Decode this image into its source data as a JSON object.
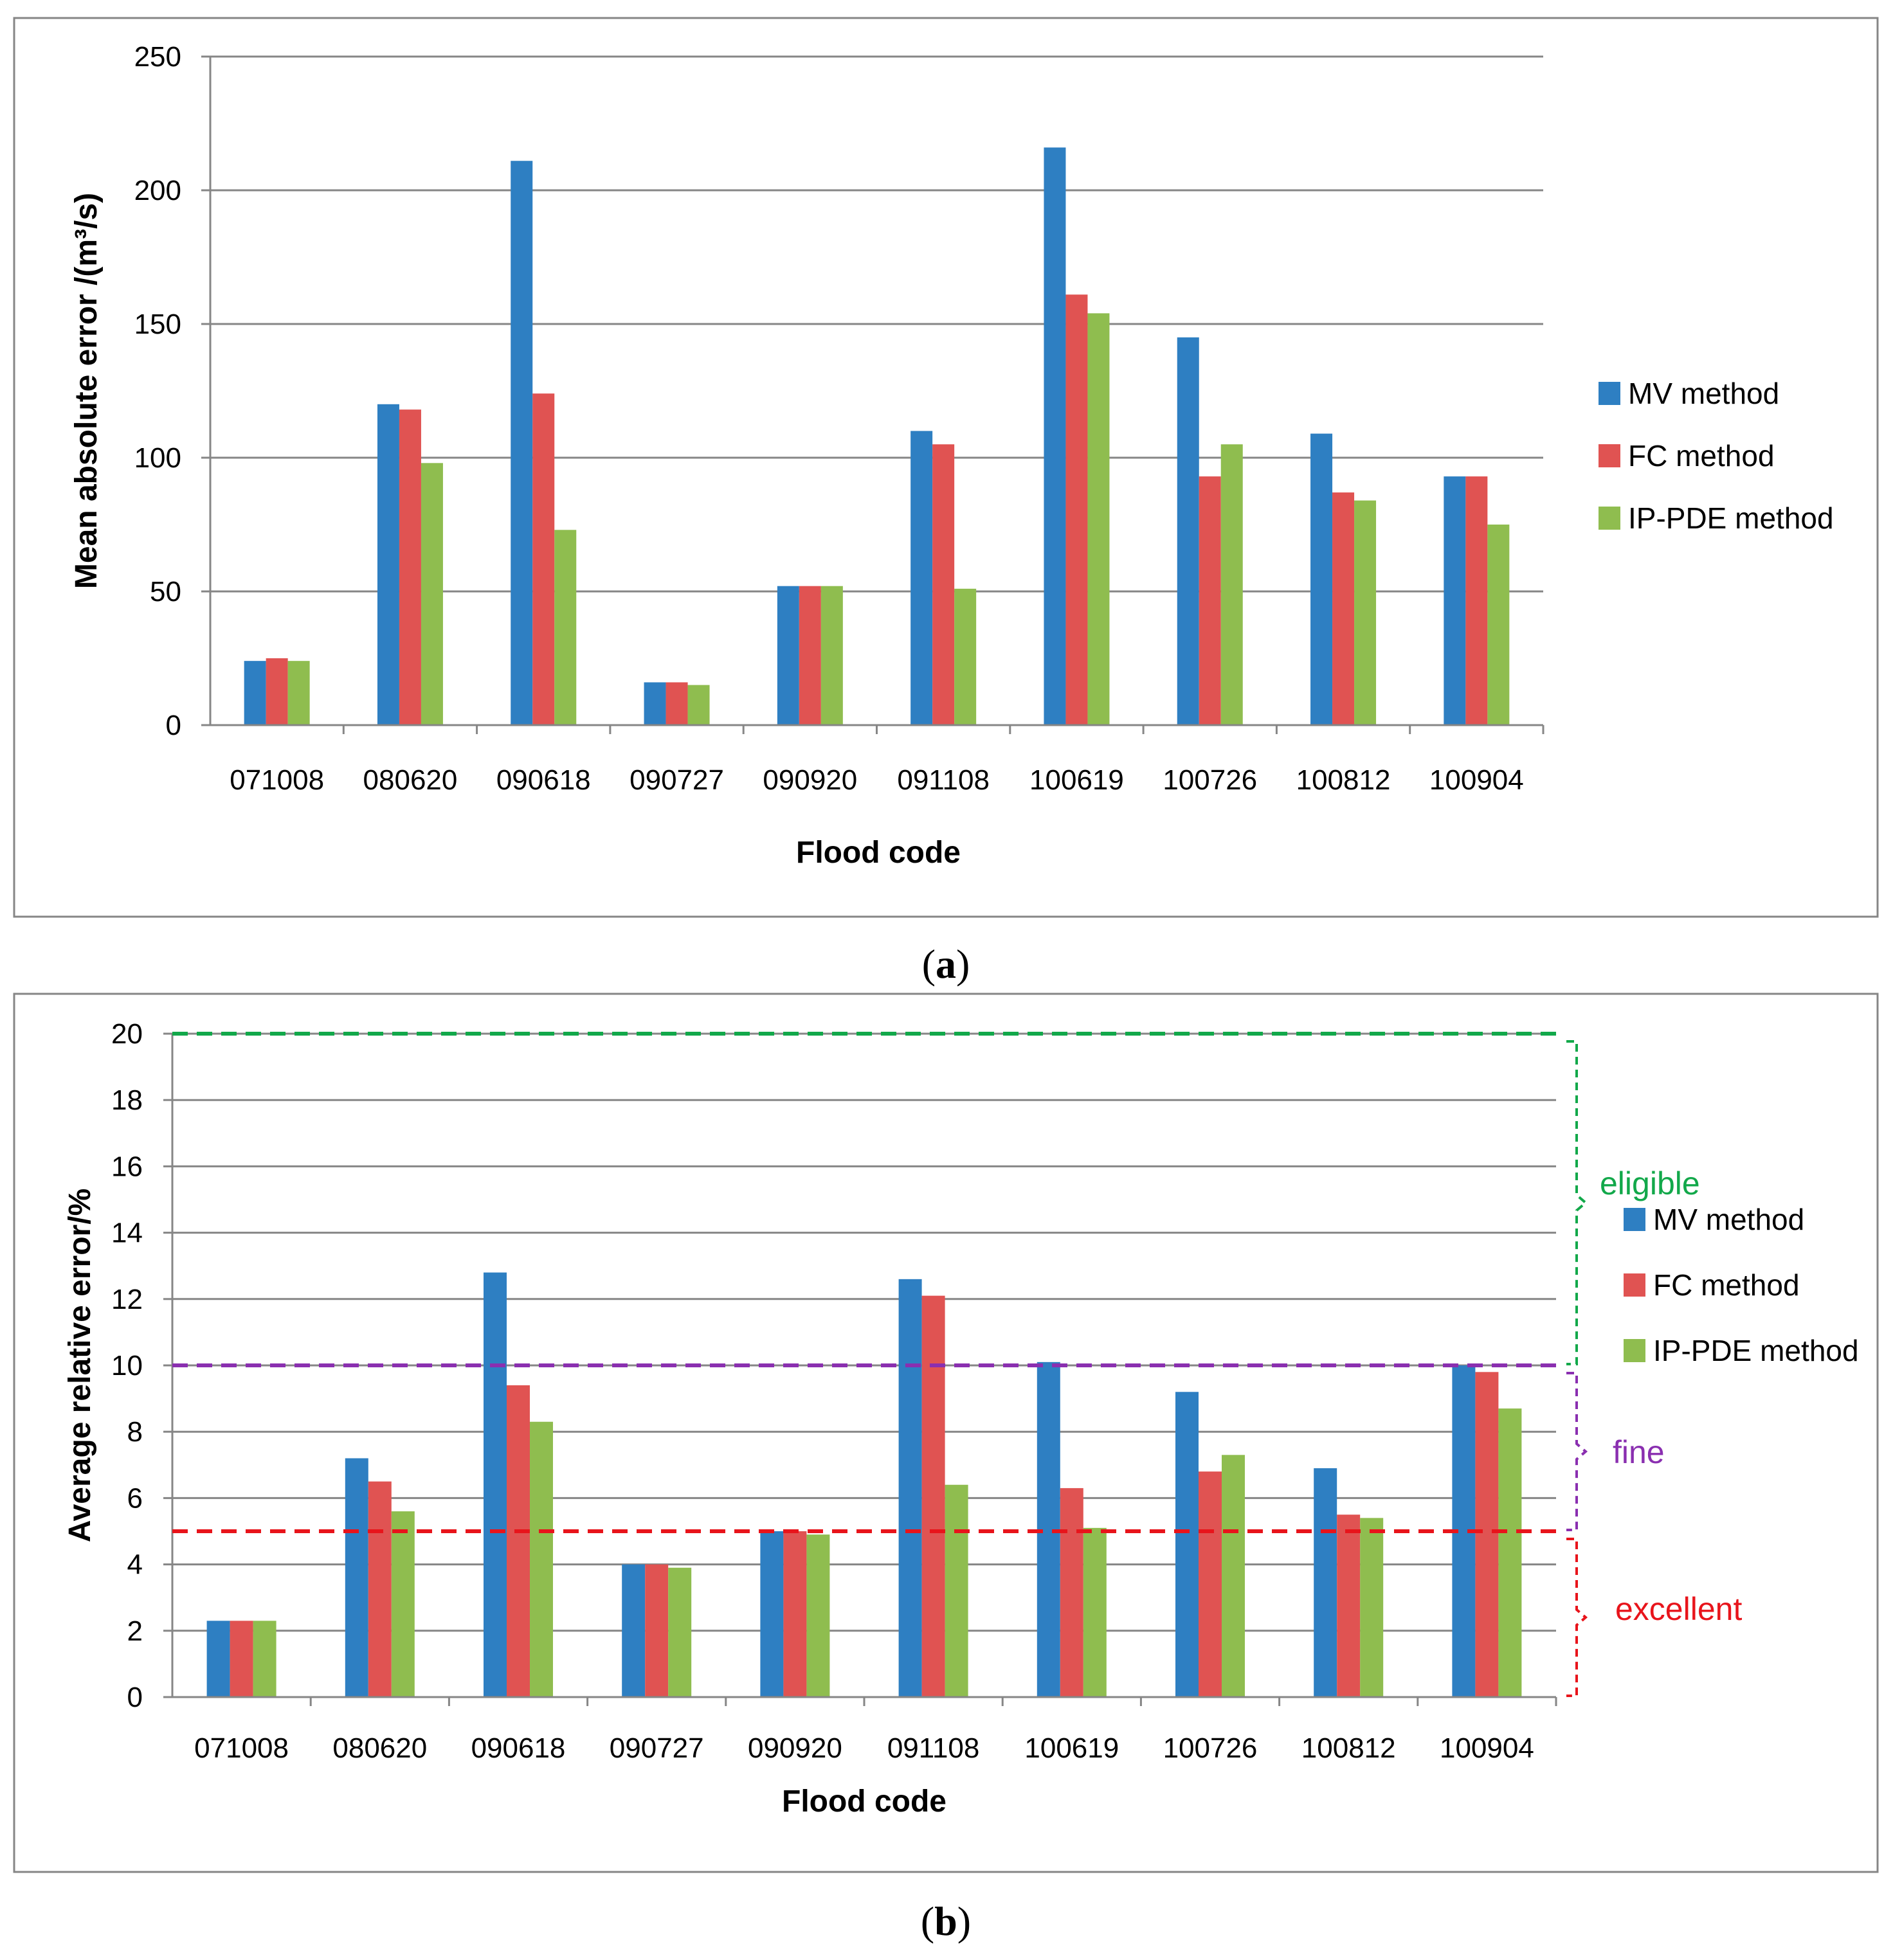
{
  "chart_data": [
    {
      "type": "bar",
      "panel_label": "(a)",
      "panel_letter": "a",
      "categories": [
        "071008",
        "080620",
        "090618",
        "090727",
        "090920",
        "091108",
        "100619",
        "100726",
        "100812",
        "100904"
      ],
      "series": [
        {
          "name": "MV method",
          "color": "#2e7fc2",
          "values": [
            24,
            120,
            211,
            16,
            52,
            110,
            216,
            145,
            109,
            93
          ]
        },
        {
          "name": "FC method",
          "color": "#e05352",
          "values": [
            25,
            118,
            124,
            16,
            52,
            105,
            161,
            93,
            87,
            93
          ]
        },
        {
          "name": "IP-PDE method",
          "color": "#8fbd4f",
          "values": [
            24,
            98,
            73,
            15,
            52,
            51,
            154,
            105,
            84,
            75
          ]
        }
      ],
      "xlabel": "Flood code",
      "ylabel": "Mean absolute error /(m³/s)",
      "ylim": [
        0,
        250
      ],
      "yticks": [
        "0",
        "50",
        "100",
        "150",
        "200",
        "250"
      ],
      "grid": true,
      "legend_position": "right"
    },
    {
      "type": "bar",
      "panel_label": "(b)",
      "panel_letter": "b",
      "categories": [
        "071008",
        "080620",
        "090618",
        "090727",
        "090920",
        "091108",
        "100619",
        "100726",
        "100812",
        "100904"
      ],
      "series": [
        {
          "name": "MV method",
          "color": "#2e7fc2",
          "values": [
            2.3,
            7.2,
            12.8,
            4.0,
            5.0,
            12.6,
            10.1,
            9.2,
            6.9,
            10.0
          ]
        },
        {
          "name": "FC method",
          "color": "#e05352",
          "values": [
            2.3,
            6.5,
            9.4,
            4.0,
            5.0,
            12.1,
            6.3,
            6.8,
            5.5,
            9.8
          ]
        },
        {
          "name": "IP-PDE method",
          "color": "#8fbd4f",
          "values": [
            2.3,
            5.6,
            8.3,
            3.9,
            4.9,
            6.4,
            5.1,
            7.3,
            5.4,
            8.7
          ]
        }
      ],
      "xlabel": "Flood code",
      "ylabel": "Average relative error/%",
      "ylim": [
        0,
        20
      ],
      "yticks": [
        "0",
        "2",
        "4",
        "6",
        "8",
        "10",
        "12",
        "14",
        "16",
        "18",
        "20"
      ],
      "grid": true,
      "legend_position": "right",
      "thresholds": [
        {
          "value": 20,
          "label": "eligible",
          "color": "#12a84a",
          "range": [
            10,
            20
          ]
        },
        {
          "value": 10,
          "label": "fine",
          "color": "#8a2fb0",
          "range": [
            5,
            10
          ]
        },
        {
          "value": 5,
          "label": "excellent",
          "color": "#e8141b",
          "range": [
            0,
            5
          ]
        }
      ]
    }
  ]
}
